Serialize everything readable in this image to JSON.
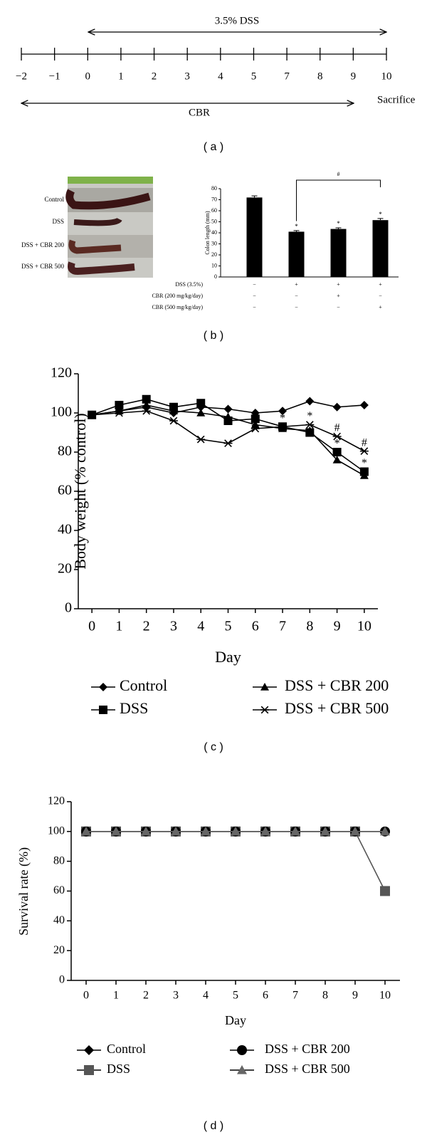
{
  "timeline": {
    "top_label": "3.5% DSS",
    "ticks": [
      "−2",
      "−1",
      "0",
      "1",
      "2",
      "3",
      "4",
      "5",
      "7",
      "8",
      "9",
      "10"
    ],
    "end_label": "Sacrifice",
    "bottom_label": "CBR",
    "panel_label": "( a )"
  },
  "photo": {
    "rows": [
      "Control",
      "DSS",
      "DSS + CBR 200",
      "DSS + CBR 500"
    ]
  },
  "chart_data": [
    {
      "type": "bar",
      "panel_label": "( b )",
      "ylabel": "Colon length (mm)",
      "values": [
        72,
        41,
        43.5,
        51.5
      ],
      "errors": [
        1.5,
        1,
        1,
        1.5
      ],
      "color": "#000000",
      "ylim": [
        0,
        80
      ],
      "yticks": [
        0,
        10,
        20,
        30,
        40,
        50,
        60,
        70,
        80
      ],
      "significance": [
        null,
        "*",
        "*",
        "*"
      ],
      "bracket": {
        "from": 1,
        "to": 3,
        "label": "#"
      },
      "treatments": [
        {
          "name": "DSS (3.5%)",
          "marks": [
            "−",
            "+",
            "+",
            "+"
          ]
        },
        {
          "name": "CBR (200 mg/kg/day)",
          "marks": [
            "−",
            "−",
            "+",
            "−"
          ]
        },
        {
          "name": "CBR (500 mg/kg/day)",
          "marks": [
            "−",
            "−",
            "−",
            "+"
          ]
        }
      ]
    },
    {
      "type": "line",
      "panel_label": "( c )",
      "xlabel": "Day",
      "ylabel": "Body weight (% control)",
      "x": [
        0,
        1,
        2,
        3,
        4,
        5,
        6,
        7,
        8,
        9,
        10
      ],
      "xlim": [
        -0.5,
        10.5
      ],
      "xticks": [
        0,
        1,
        2,
        3,
        4,
        5,
        6,
        7,
        8,
        9,
        10
      ],
      "ylim": [
        0,
        120
      ],
      "yticks": [
        0,
        20,
        40,
        60,
        80,
        100,
        120
      ],
      "series": [
        {
          "name": "Control",
          "color": "#000000",
          "marker": "diamond",
          "values": [
            99,
            101,
            103,
            100,
            103,
            102,
            100,
            101,
            106,
            103,
            104
          ]
        },
        {
          "name": "DSS",
          "color": "#000000",
          "marker": "square",
          "values": [
            99,
            104,
            107,
            103,
            105,
            96,
            97,
            93,
            90,
            80,
            70
          ]
        },
        {
          "name": "DSS + CBR 200",
          "color": "#000000",
          "marker": "triangle",
          "values": [
            99,
            101,
            104,
            101,
            100,
            98,
            94,
            92,
            91,
            76,
            68
          ]
        },
        {
          "name": "DSS + CBR 500",
          "color": "#000000",
          "marker": "asterisk",
          "values": [
            99,
            100,
            101,
            96,
            86.5,
            84.5,
            92,
            93,
            94,
            88,
            80.5
          ]
        }
      ],
      "annotations": [
        {
          "x": 7,
          "text": "*"
        },
        {
          "x": 8,
          "text": "*"
        },
        {
          "x": 9,
          "text": "#"
        },
        {
          "x": 9,
          "text": "*"
        },
        {
          "x": 10,
          "text": "#"
        },
        {
          "x": 10,
          "text": "*"
        }
      ]
    },
    {
      "type": "line",
      "panel_label": "( d )",
      "xlabel": "Day",
      "ylabel": "Survival rate (%)",
      "x": [
        0,
        1,
        2,
        3,
        4,
        5,
        6,
        7,
        8,
        9,
        10
      ],
      "xlim": [
        -0.5,
        10.5
      ],
      "xticks": [
        0,
        1,
        2,
        3,
        4,
        5,
        6,
        7,
        8,
        9,
        10
      ],
      "ylim": [
        0,
        120
      ],
      "yticks": [
        0,
        20,
        40,
        60,
        80,
        100,
        120
      ],
      "series": [
        {
          "name": "Control",
          "color": "#000000",
          "marker": "diamond",
          "values": [
            100,
            100,
            100,
            100,
            100,
            100,
            100,
            100,
            100,
            100,
            100
          ]
        },
        {
          "name": "DSS",
          "color": "#555555",
          "marker": "square",
          "values": [
            100,
            100,
            100,
            100,
            100,
            100,
            100,
            100,
            100,
            100,
            60
          ]
        },
        {
          "name": "DSS + CBR 200",
          "color": "#000000",
          "marker": "circle",
          "values": [
            100,
            100,
            100,
            100,
            100,
            100,
            100,
            100,
            100,
            100,
            100
          ]
        },
        {
          "name": "DSS + CBR 500",
          "color": "#666666",
          "marker": "triangle",
          "values": [
            100,
            100,
            100,
            100,
            100,
            100,
            100,
            100,
            100,
            100,
            100
          ]
        }
      ]
    }
  ]
}
